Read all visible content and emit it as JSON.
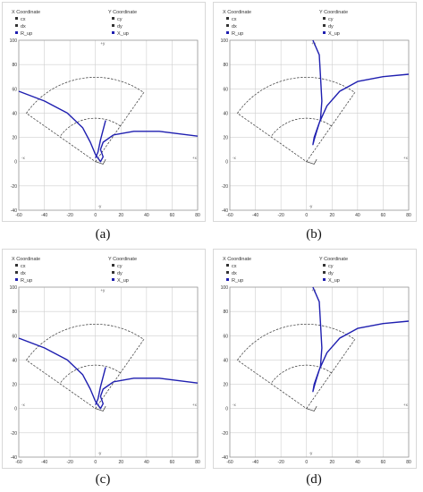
{
  "legend_headers": {
    "x": "X Coordinate",
    "y": "Y Coordinate"
  },
  "legend_items": {
    "col1": [
      "cx",
      "dx",
      "R_up"
    ],
    "col2": [
      "cy",
      "dy",
      "X_up"
    ]
  },
  "colors": {
    "trajectory": "#1f1fb0",
    "sector": "#333333",
    "grid": "#cfcfcf",
    "axis": "#555555"
  },
  "chart_data": [
    {
      "type": "line",
      "label": "(a)",
      "xlim": [
        -60,
        80
      ],
      "ylim": [
        -40,
        100
      ],
      "xticks": [
        -60,
        -40,
        -20,
        0,
        20,
        40,
        60,
        80
      ],
      "yticks": [
        -40,
        -20,
        0,
        20,
        40,
        60,
        80,
        100
      ],
      "axis_markers": {
        "plus_y": "+y",
        "minus_y": "-y",
        "plus_x": "+x",
        "minus_x": "-x"
      },
      "series": [
        {
          "values": [
            [
              -60,
              58
            ],
            [
              -40,
              50
            ],
            [
              -22,
              40
            ],
            [
              -10,
              28
            ],
            [
              -4,
              16
            ],
            [
              0,
              6
            ],
            [
              4,
              0
            ],
            [
              6,
              4
            ],
            [
              4,
              10
            ],
            [
              6,
              16
            ],
            [
              14,
              22
            ],
            [
              30,
              25
            ],
            [
              50,
              25
            ],
            [
              80,
              21
            ]
          ]
        },
        {
          "values": [
            [
              8,
              34
            ],
            [
              4,
              18
            ],
            [
              2,
              8
            ],
            [
              0,
              3
            ]
          ]
        }
      ]
    },
    {
      "type": "line",
      "label": "(b)",
      "xlim": [
        -60,
        80
      ],
      "ylim": [
        -40,
        100
      ],
      "xticks": [
        -60,
        -40,
        -20,
        0,
        20,
        40,
        60,
        80
      ],
      "yticks": [
        -40,
        -20,
        0,
        20,
        40,
        60,
        80,
        100
      ],
      "axis_markers": {
        "plus_y": "+y",
        "minus_y": "-y",
        "plus_x": "+x",
        "minus_x": "-x"
      },
      "series": [
        {
          "values": [
            [
              5,
              100
            ],
            [
              10,
              88
            ],
            [
              11,
              70
            ],
            [
              12,
              50
            ],
            [
              11,
              35
            ],
            [
              8,
              25
            ],
            [
              6,
              18
            ],
            [
              5,
              14
            ],
            [
              6,
              20
            ],
            [
              10,
              32
            ],
            [
              16,
              46
            ],
            [
              26,
              58
            ],
            [
              40,
              66
            ],
            [
              60,
              70
            ],
            [
              80,
              72
            ]
          ]
        }
      ]
    },
    {
      "type": "line",
      "label": "(c)",
      "xlim": [
        -60,
        80
      ],
      "ylim": [
        -40,
        100
      ],
      "xticks": [
        -60,
        -40,
        -20,
        0,
        20,
        40,
        60,
        80
      ],
      "yticks": [
        -40,
        -20,
        0,
        20,
        40,
        60,
        80,
        100
      ],
      "axis_markers": {
        "plus_y": "+y",
        "minus_y": "-y",
        "plus_x": "+x",
        "minus_x": "-x"
      },
      "series": [
        {
          "values": [
            [
              -60,
              58
            ],
            [
              -40,
              50
            ],
            [
              -22,
              40
            ],
            [
              -10,
              28
            ],
            [
              -4,
              16
            ],
            [
              0,
              6
            ],
            [
              4,
              0
            ],
            [
              6,
              4
            ],
            [
              4,
              10
            ],
            [
              6,
              16
            ],
            [
              14,
              22
            ],
            [
              30,
              25
            ],
            [
              50,
              25
            ],
            [
              80,
              21
            ]
          ]
        },
        {
          "values": [
            [
              8,
              34
            ],
            [
              4,
              18
            ],
            [
              2,
              8
            ],
            [
              0,
              3
            ]
          ]
        }
      ]
    },
    {
      "type": "line",
      "label": "(d)",
      "xlim": [
        -60,
        80
      ],
      "ylim": [
        -40,
        100
      ],
      "xticks": [
        -60,
        -40,
        -20,
        0,
        20,
        40,
        60,
        80
      ],
      "yticks": [
        -40,
        -20,
        0,
        20,
        40,
        60,
        80,
        100
      ],
      "axis_markers": {
        "plus_y": "+y",
        "minus_y": "-y",
        "plus_x": "+x",
        "minus_x": "-x"
      },
      "series": [
        {
          "values": [
            [
              5,
              100
            ],
            [
              10,
              88
            ],
            [
              11,
              70
            ],
            [
              12,
              50
            ],
            [
              11,
              35
            ],
            [
              8,
              25
            ],
            [
              6,
              18
            ],
            [
              5,
              14
            ],
            [
              6,
              20
            ],
            [
              10,
              32
            ],
            [
              16,
              46
            ],
            [
              26,
              58
            ],
            [
              40,
              66
            ],
            [
              60,
              70
            ],
            [
              80,
              72
            ]
          ]
        }
      ]
    }
  ]
}
